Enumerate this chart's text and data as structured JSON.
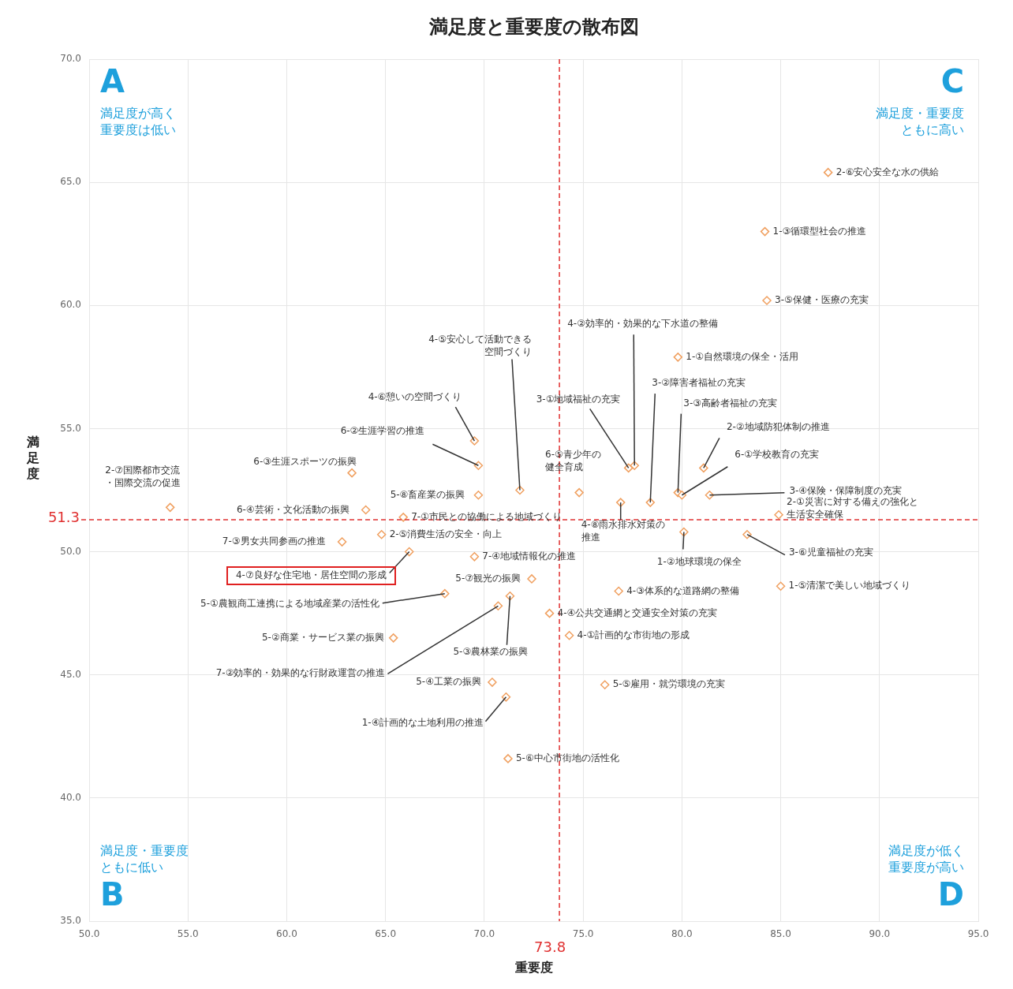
{
  "chart_data": {
    "type": "scatter",
    "title": "満足度と重要度の散布図",
    "xlabel": "重要度",
    "ylabel": "満足度",
    "x": [
      87.4,
      84.2,
      84.3,
      79.8,
      85.0,
      84.9,
      83.3,
      81.4,
      81.1,
      79.8,
      80.0,
      78.4,
      77.6,
      77.3,
      74.8,
      76.9,
      80.1,
      76.8,
      73.3,
      74.3,
      76.1,
      71.2,
      70.4,
      71.1,
      71.3,
      70.7,
      65.4,
      68.0,
      72.4,
      69.5,
      66.2,
      64.8,
      62.8,
      65.9,
      64.0,
      54.1,
      63.3,
      69.7,
      69.5,
      71.8,
      69.7
    ],
    "series": [
      {
        "color": "#f0a060",
        "values": [
          65.4,
          63.0,
          60.2,
          57.9,
          48.6,
          51.5,
          50.7,
          52.3,
          53.4,
          52.4,
          52.3,
          52.0,
          53.5,
          53.4,
          52.4,
          52.0,
          50.8,
          48.4,
          47.5,
          46.6,
          44.6,
          41.6,
          44.7,
          44.1,
          48.2,
          47.8,
          46.5,
          48.3,
          48.9,
          49.8,
          50.0,
          50.7,
          50.4,
          51.4,
          51.7,
          51.8,
          53.2,
          53.5,
          54.5,
          52.5,
          52.3
        ]
      }
    ],
    "marker": "diamond",
    "grid": true,
    "xlim": [
      50,
      95
    ],
    "xticks": [
      {
        "value": 50,
        "label": "50.0"
      },
      {
        "value": 55,
        "label": "55.0"
      },
      {
        "value": 60,
        "label": "60.0"
      },
      {
        "value": 65,
        "label": "65.0"
      },
      {
        "value": 70,
        "label": "70.0"
      },
      {
        "value": 75,
        "label": "75.0"
      },
      {
        "value": 80,
        "label": "80.0"
      },
      {
        "value": 85,
        "label": "85.0"
      },
      {
        "value": 90,
        "label": "90.0"
      },
      {
        "value": 95,
        "label": "95.0"
      }
    ],
    "ylim": [
      35,
      70
    ],
    "yticks": [
      {
        "value": 35,
        "label": "35.0"
      },
      {
        "value": 40,
        "label": "40.0"
      },
      {
        "value": 45,
        "label": "45.0"
      },
      {
        "value": 50,
        "label": "50.0"
      },
      {
        "value": 55,
        "label": "55.0"
      },
      {
        "value": 60,
        "label": "60.0"
      },
      {
        "value": 65,
        "label": "65.0"
      },
      {
        "value": 70,
        "label": "70.0"
      }
    ],
    "ref_lines": [
      {
        "axis": "x",
        "value": 73.8,
        "label": "73.8",
        "color": "#e03030",
        "line_style": "dashed"
      },
      {
        "axis": "y",
        "value": 51.3,
        "label": "51.3",
        "color": "#e03030",
        "line_style": "dashed"
      }
    ],
    "annotations": [
      {
        "text": "2-⑥安心安全な水の供給",
        "x": 87.4,
        "y": 65.4
      },
      {
        "text": "1-③循環型社会の推進",
        "x": 84.2,
        "y": 63.0
      },
      {
        "text": "3-⑤保健・医療の充実",
        "x": 84.3,
        "y": 60.2
      },
      {
        "text": "1-①自然環境の保全・活用",
        "x": 79.8,
        "y": 57.9
      },
      {
        "text": "1-⑤清潔で美しい地域づくり",
        "x": 85.0,
        "y": 48.6
      },
      {
        "text": "2-①災害に対する備えの強化と生活安全確保",
        "x": 84.9,
        "y": 51.5
      },
      {
        "text": "3-⑥児童福祉の充実",
        "x": 83.3,
        "y": 50.7
      },
      {
        "text": "3-④保険・保障制度の充実",
        "x": 81.4,
        "y": 52.3
      },
      {
        "text": "2-②地域防犯体制の推進",
        "x": 81.1,
        "y": 53.4
      },
      {
        "text": "3-③高齢者福祉の充実",
        "x": 79.8,
        "y": 52.4
      },
      {
        "text": "6-①学校教育の充実",
        "x": 80.0,
        "y": 52.3
      },
      {
        "text": "3-②障害者福祉の充実",
        "x": 78.4,
        "y": 52.0
      },
      {
        "text": "4-②効率的・効果的な下水道の整備",
        "x": 77.6,
        "y": 53.5
      },
      {
        "text": "3-①地域福祉の充実",
        "x": 77.3,
        "y": 53.4
      },
      {
        "text": "6-⑤青少年の健全育成",
        "x": 74.8,
        "y": 52.4
      },
      {
        "text": "4-⑧雨水排水対策の推進",
        "x": 76.9,
        "y": 52.0
      },
      {
        "text": "1-②地球環境の保全",
        "x": 80.1,
        "y": 50.8
      },
      {
        "text": "4-③体系的な道路網の整備",
        "x": 76.8,
        "y": 48.4
      },
      {
        "text": "4-④公共交通網と交通安全対策の充実",
        "x": 73.3,
        "y": 47.5
      },
      {
        "text": "4-①計画的な市街地の形成",
        "x": 74.3,
        "y": 46.6
      },
      {
        "text": "5-⑤雇用・就労環境の充実",
        "x": 76.1,
        "y": 44.6
      },
      {
        "text": "5-⑥中心市街地の活性化",
        "x": 71.2,
        "y": 41.6
      },
      {
        "text": "5-④工業の振興",
        "x": 70.4,
        "y": 44.7
      },
      {
        "text": "1-④計画的な土地利用の推進",
        "x": 71.1,
        "y": 44.1
      },
      {
        "text": "5-③農林業の振興",
        "x": 71.3,
        "y": 48.2
      },
      {
        "text": "7-②効率的・効果的な行財政運営の推進",
        "x": 70.7,
        "y": 47.8
      },
      {
        "text": "5-②商業・サービス業の振興",
        "x": 65.4,
        "y": 46.5
      },
      {
        "text": "5-①農観商工連携による地域産業の活性化",
        "x": 68.0,
        "y": 48.3
      },
      {
        "text": "5-⑦観光の振興",
        "x": 72.4,
        "y": 48.9
      },
      {
        "text": "7-④地域情報化の推進",
        "x": 69.5,
        "y": 49.8
      },
      {
        "text": "4-⑦良好な住宅地・居住空間の形成",
        "x": 66.2,
        "y": 50.0
      },
      {
        "text": "2-⑤消費生活の安全・向上",
        "x": 64.8,
        "y": 50.7
      },
      {
        "text": "7-③男女共同参画の推進",
        "x": 62.8,
        "y": 50.4
      },
      {
        "text": "7-①市民との協働による地域づくり",
        "x": 65.9,
        "y": 51.4
      },
      {
        "text": "6-④芸術・文化活動の振興",
        "x": 64.0,
        "y": 51.7
      },
      {
        "text": "2-⑦国際都市交流・国際交流の促進",
        "x": 54.1,
        "y": 51.8
      },
      {
        "text": "6-③生涯スポーツの振興",
        "x": 63.3,
        "y": 53.2
      },
      {
        "text": "6-②生涯学習の推進",
        "x": 69.7,
        "y": 53.5
      },
      {
        "text": "4-⑥憩いの空間づくり",
        "x": 69.5,
        "y": 54.5
      },
      {
        "text": "4-⑤安心して活動できる空間づくり",
        "x": 71.8,
        "y": 52.5
      },
      {
        "text": "5-⑧畜産業の振興",
        "x": 69.7,
        "y": 52.3
      },
      "A",
      "満足度が高く重要度は低い",
      "C",
      "満足度・重要度ともに高い",
      "満足度・重要度ともに低い",
      "B",
      "満足度が低く重要度が高い",
      "D"
    ]
  }
}
